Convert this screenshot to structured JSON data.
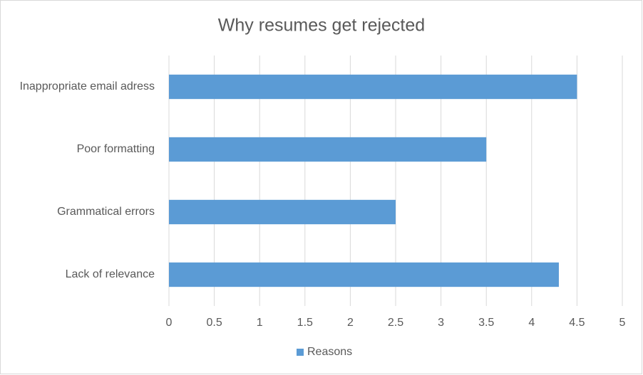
{
  "chart_data": {
    "type": "bar",
    "orientation": "horizontal",
    "title": "Why resumes get rejected",
    "categories": [
      "Inappropriate email adress",
      "Poor formatting",
      "Grammatical errors",
      "Lack of relevance"
    ],
    "series": [
      {
        "name": "Reasons",
        "color": "#5b9bd5",
        "values": [
          4.5,
          3.5,
          2.5,
          4.3
        ]
      }
    ],
    "xlim": [
      0,
      5
    ],
    "xticks": [
      0,
      0.5,
      1,
      1.5,
      2,
      2.5,
      3,
      3.5,
      4,
      4.5,
      5
    ],
    "grid": true,
    "legend": "bottom"
  }
}
